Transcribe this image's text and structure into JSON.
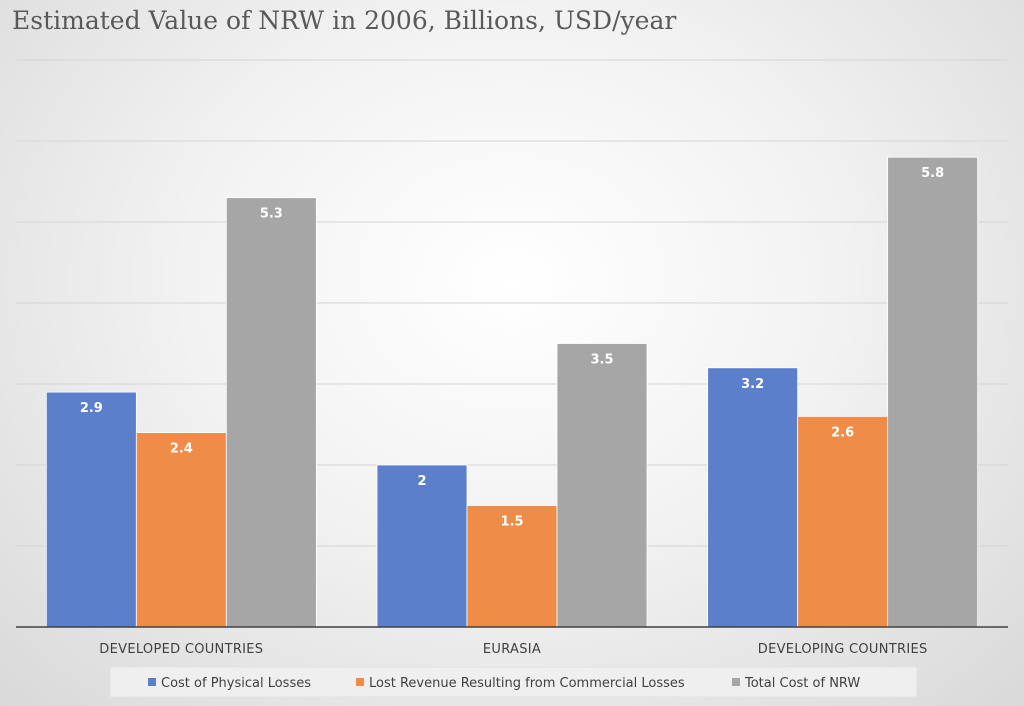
{
  "chart_data": {
    "type": "bar",
    "title": "Estimated Value of NRW in 2006, Billions, USD/year",
    "categories": [
      "DEVELOPED COUNTRIES",
      "EURASIA",
      "DEVELOPING COUNTRIES"
    ],
    "series": [
      {
        "name": "Cost of Physical Losses",
        "color": "#5b7fcb",
        "values": [
          2.9,
          2,
          3.2
        ],
        "labels": [
          "2.9",
          "2",
          "3.2"
        ]
      },
      {
        "name": "Lost Revenue Resulting from Commercial Losses",
        "color": "#ee8c48",
        "values": [
          2.4,
          1.5,
          2.6
        ],
        "labels": [
          "2.4",
          "1.5",
          "2.6"
        ]
      },
      {
        "name": "Total Cost of NRW",
        "color": "#a6a6a6",
        "values": [
          5.3,
          3.5,
          5.8
        ],
        "labels": [
          "5.3",
          "3.5",
          "5.8"
        ]
      }
    ],
    "ylim": [
      0,
      7
    ],
    "y_gridline_step": 1,
    "y_tick_labels_shown": false,
    "grid": true,
    "legend_position": "bottom",
    "xlabel": "",
    "ylabel": ""
  }
}
